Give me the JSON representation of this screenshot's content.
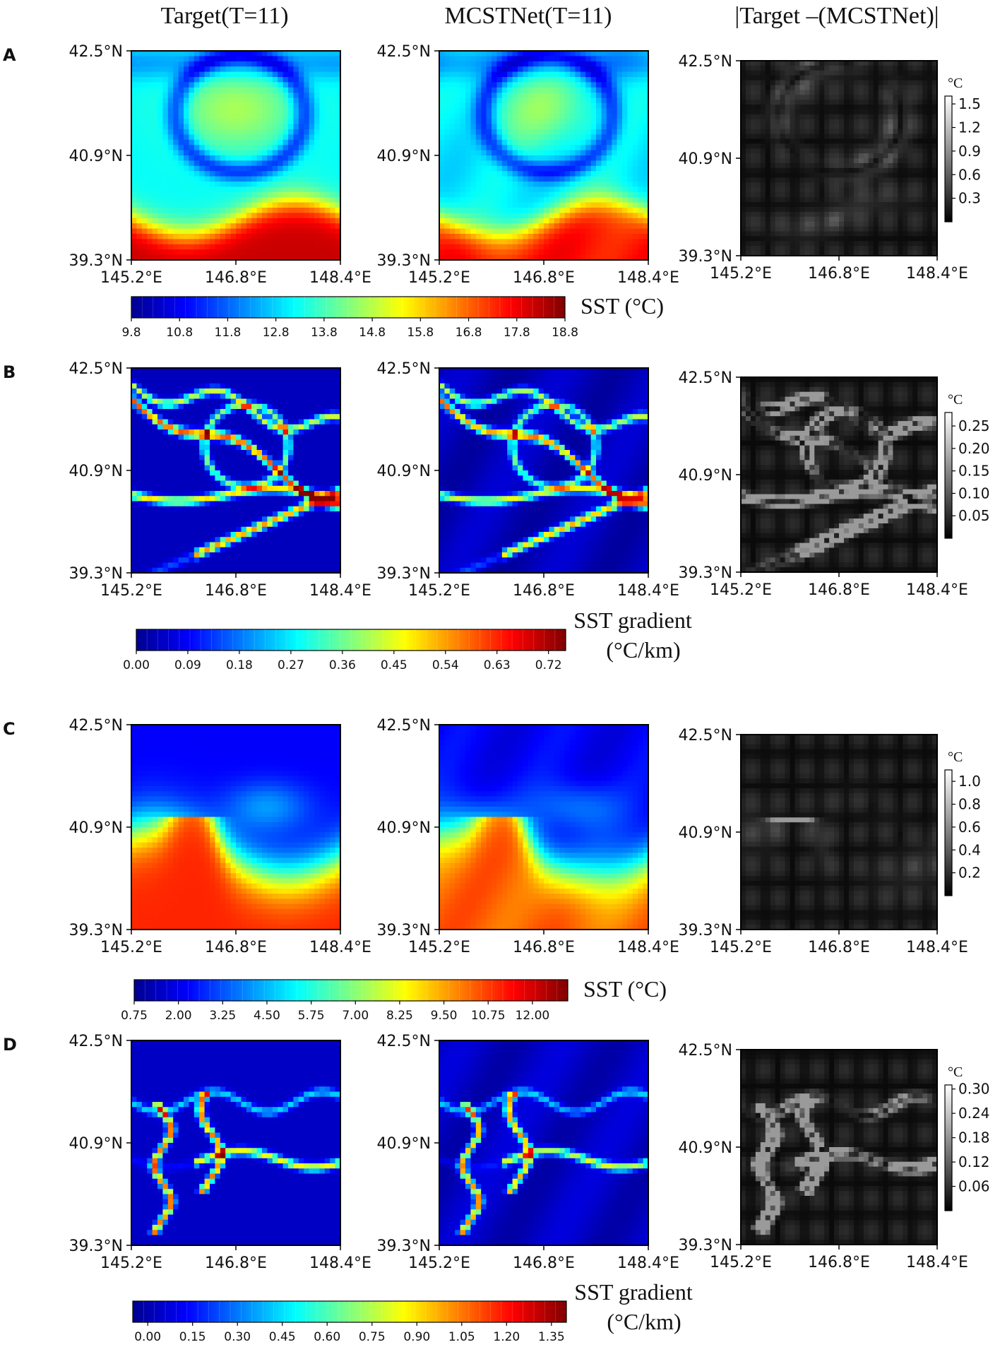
{
  "column_titles": [
    "Target(T=11)",
    "MCSTNet(T=11)",
    "|Target –(MCSTNet)|"
  ],
  "panel_letters": [
    "A",
    "B",
    "C",
    "D"
  ],
  "lat_ticks": [
    "42.5°N",
    "40.9°N",
    "39.3°N"
  ],
  "lon_ticks": [
    "145.2°E",
    "146.8°E",
    "148.4°E"
  ],
  "diff_unit": "°C",
  "colors": {
    "jet": [
      "#00008f",
      "#0000ff",
      "#0080ff",
      "#00ffff",
      "#80ff80",
      "#ffff00",
      "#ff8000",
      "#ff0000",
      "#800000"
    ],
    "gray": [
      "#000000",
      "#ffffff"
    ],
    "axis": "#000000"
  },
  "chart_data": [
    {
      "type": "heatmap",
      "panel": "A",
      "field": "SST",
      "xlim": [
        145.2,
        148.4
      ],
      "ylim": [
        39.3,
        42.5
      ],
      "colorbar": {
        "label": "SST (°C)",
        "label_lines": [
          "SST (°C)"
        ],
        "colormap": "jet",
        "range": [
          9.8,
          18.8
        ],
        "ticks": [
          "9.8",
          "10.8",
          "11.8",
          "12.8",
          "13.8",
          "14.8",
          "15.8",
          "16.8",
          "17.8",
          "18.8"
        ]
      },
      "diff_colorbar": {
        "unit": "°C",
        "colormap": "gray",
        "range": [
          0,
          1.6
        ],
        "ticks": [
          "1.5",
          "1.2",
          "0.9",
          "0.6",
          "0.3"
        ]
      }
    },
    {
      "type": "heatmap",
      "panel": "B",
      "field": "SST gradient",
      "xlim": [
        145.2,
        148.4
      ],
      "ylim": [
        39.3,
        42.5
      ],
      "colorbar": {
        "label": "SST gradient (°C/km)",
        "label_lines": [
          "SST gradient",
          "(°C/km)"
        ],
        "colormap": "jet",
        "range": [
          0,
          0.75
        ],
        "ticks": [
          "0.00",
          "0.09",
          "0.18",
          "0.27",
          "0.36",
          "0.45",
          "0.54",
          "0.63",
          "0.72"
        ]
      },
      "diff_colorbar": {
        "unit": "°C",
        "colormap": "gray",
        "range": [
          0,
          0.28
        ],
        "ticks": [
          "0.25",
          "0.20",
          "0.15",
          "0.10",
          "0.05"
        ]
      }
    },
    {
      "type": "heatmap",
      "panel": "C",
      "field": "SST",
      "xlim": [
        145.2,
        148.4
      ],
      "ylim": [
        39.3,
        42.5
      ],
      "colorbar": {
        "label": "SST (°C)",
        "label_lines": [
          "SST (°C)"
        ],
        "colormap": "jet",
        "range": [
          0.75,
          13.0
        ],
        "ticks": [
          "0.75",
          "2.00",
          "3.25",
          "4.50",
          "5.75",
          "7.00",
          "8.25",
          "9.50",
          "10.75",
          "12.00"
        ]
      },
      "diff_colorbar": {
        "unit": "°C",
        "colormap": "gray",
        "range": [
          0,
          1.1
        ],
        "ticks": [
          "1.0",
          "0.8",
          "0.6",
          "0.4",
          "0.2"
        ]
      }
    },
    {
      "type": "heatmap",
      "panel": "D",
      "field": "SST gradient",
      "xlim": [
        145.2,
        148.4
      ],
      "ylim": [
        39.3,
        42.5
      ],
      "colorbar": {
        "label": "SST gradient (°C/km)",
        "label_lines": [
          "SST gradient",
          "(°C/km)"
        ],
        "colormap": "jet",
        "range": [
          -0.05,
          1.4
        ],
        "ticks": [
          "0.00",
          "0.15",
          "0.30",
          "0.45",
          "0.60",
          "0.75",
          "0.90",
          "1.05",
          "1.20",
          "1.35"
        ]
      },
      "diff_colorbar": {
        "unit": "°C",
        "colormap": "gray",
        "range": [
          0,
          0.31
        ],
        "ticks": [
          "0.30",
          "0.24",
          "0.18",
          "0.12",
          "0.06"
        ]
      }
    }
  ]
}
